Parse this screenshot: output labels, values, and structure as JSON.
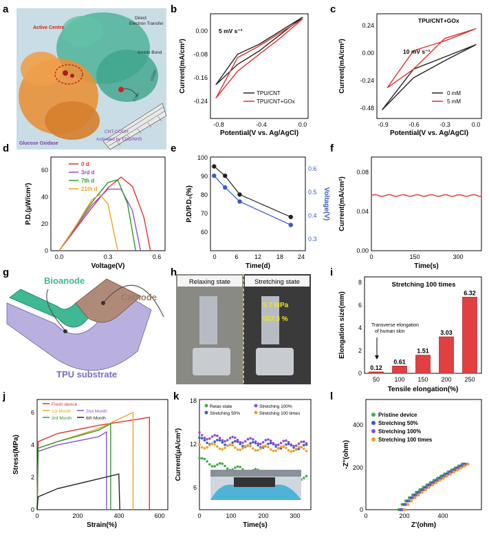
{
  "panels": {
    "a": {
      "letter": "a",
      "labels": {
        "active_centre": "Active Centre",
        "direct_et_1": "Direct",
        "direct_et_2": "Electron Transfer",
        "amido_bond": "Amido Bond",
        "glucose_oxidase": "Glucose Oxidase",
        "cnt_cooh": "CNT-COOH",
        "activated": "Activated by EDC/NHS",
        "cooh": "COOH",
        "c_nh": "C-NH"
      },
      "colors": {
        "bg": "#c9dde6",
        "enzyme_orange": "#e8923a",
        "enzyme_teal": "#4fb39a",
        "text_purple": "#7a3fa0",
        "text_red": "#d62020"
      }
    },
    "b": {
      "letter": "b",
      "annotation": "5 mV s⁻¹",
      "xlabel": "Potential(V vs. Ag/AgCl)",
      "ylabel": "Current(mA/cm²)",
      "xticks": [
        "-0.8",
        "-0.4",
        "0.0"
      ],
      "yticks": [
        "0.00",
        "-0.08",
        "-0.16",
        "-0.24"
      ],
      "legend": [
        "TPU/CNT",
        "TPU/CNT+GOx"
      ]
    },
    "c": {
      "letter": "c",
      "title": "TPU/CNT+GOx",
      "annotation": "10 mV s⁻¹",
      "xlabel": "Potential(V vs. Ag/AgCl)",
      "ylabel": "Current(mA/cm²)",
      "xticks": [
        "-0.9",
        "-0.6",
        "-0.3",
        "0.0"
      ],
      "yticks": [
        "0.24",
        "0.00",
        "-0.24",
        "-0.48"
      ],
      "legend": [
        "0 mM",
        "5 mM"
      ]
    },
    "d": {
      "letter": "d",
      "xlabel": "Voltage(V)",
      "ylabel": "P.D.(μW/cm²)",
      "xticks": [
        "0.0",
        "0.3",
        "0.6"
      ],
      "yticks": [
        "0",
        "20",
        "40",
        "60"
      ],
      "legend": [
        "0 d",
        "3rd d",
        "7th d",
        "21th d"
      ]
    },
    "e": {
      "letter": "e",
      "xlabel": "Time(d)",
      "ylabel": "P.D/P.D₀(%)",
      "ylabel2": "Voltage(V)",
      "xticks": [
        "0",
        "6",
        "12",
        "18",
        "24"
      ],
      "yticks": [
        "60",
        "70",
        "80",
        "90",
        "100"
      ],
      "y2ticks": [
        "0.3",
        "0.4",
        "0.5",
        "0.6"
      ]
    },
    "f": {
      "letter": "f",
      "xlabel": "Time(s)",
      "ylabel": "Current(mA/cm²)",
      "xticks": [
        "0",
        "150",
        "300"
      ],
      "yticks": [
        "0.00",
        "0.04",
        "0.08"
      ]
    },
    "g": {
      "letter": "g",
      "labels": {
        "bioanode": "Bioanode",
        "cathode": "Cathode",
        "substrate": "TPU substrate"
      }
    },
    "h": {
      "letter": "h",
      "labels": {
        "relaxing": "Relaxing state",
        "stretching": "Stretching state",
        "mpa": "5.7 MPa",
        "pct": "557.3 %"
      }
    },
    "i": {
      "letter": "i",
      "title": "Stretching 100 times",
      "annotation_1": "Transverse elongation",
      "annotation_2": "of human skin",
      "xlabel": "Tensile elongation(%)",
      "ylabel": "Elongation size(mm)",
      "yticks": [
        "0",
        "2",
        "4",
        "6",
        "8"
      ]
    },
    "j": {
      "letter": "j",
      "xlabel": "Strain(%)",
      "ylabel": "Stress(MPa)",
      "xticks": [
        "0",
        "200",
        "400",
        "600"
      ],
      "yticks": [
        "0",
        "2",
        "4",
        "6"
      ],
      "legend": [
        "Fresh device",
        "1st Month",
        "2nd Month",
        "3rd Month",
        "6th Month"
      ]
    },
    "k": {
      "letter": "k",
      "xlabel": "Time(s)",
      "ylabel": "Current(μA/cm²)",
      "xticks": [
        "0",
        "100",
        "200",
        "300"
      ],
      "yticks": [
        "6",
        "12",
        "18"
      ],
      "legend": [
        "Relax state",
        "Stretching 100%",
        "Stretching 50%",
        "Stretching 100 times"
      ]
    },
    "l": {
      "letter": "l",
      "xlabel": "Z'(ohm)",
      "ylabel": "-Z''(ohm)",
      "xticks": [
        "0",
        "200",
        "400"
      ],
      "yticks": [
        "0",
        "200",
        "400"
      ],
      "legend": [
        "Pristine device",
        "Stretching 50%",
        "Stretching 100%",
        "Stretching 100 times"
      ]
    }
  },
  "chart_data": [
    {
      "panel": "b",
      "type": "line",
      "xlim": [
        -0.85,
        0.05
      ],
      "ylim": [
        -0.28,
        0.03
      ],
      "series": [
        {
          "name": "TPU/CNT",
          "color": "#222222",
          "x": [
            0.0,
            -0.2,
            -0.4,
            -0.6,
            -0.8,
            -0.6,
            -0.4,
            -0.2,
            0.0
          ],
          "y": [
            0.02,
            -0.02,
            -0.06,
            -0.09,
            -0.18,
            -0.12,
            -0.08,
            -0.03,
            0.02
          ]
        },
        {
          "name": "TPU/CNT+GOx",
          "color": "#e03030",
          "x": [
            0.0,
            -0.2,
            -0.4,
            -0.6,
            -0.8,
            -0.6,
            -0.4,
            -0.2,
            0.0
          ],
          "y": [
            0.015,
            -0.025,
            -0.065,
            -0.1,
            -0.22,
            -0.14,
            -0.09,
            -0.04,
            0.015
          ]
        }
      ]
    },
    {
      "panel": "c",
      "type": "line",
      "xlim": [
        -0.95,
        0.05
      ],
      "ylim": [
        -0.55,
        0.3
      ],
      "series": [
        {
          "name": "0 mM",
          "color": "#222222",
          "x": [
            0.0,
            -0.3,
            -0.6,
            -0.9,
            -0.6,
            -0.3,
            0.0
          ],
          "y": [
            0.05,
            -0.05,
            -0.15,
            -0.48,
            -0.22,
            -0.08,
            0.05
          ]
        },
        {
          "name": "5 mM",
          "color": "#e03030",
          "x": [
            0.0,
            -0.3,
            -0.6,
            -0.85,
            -0.6,
            -0.3,
            0.0
          ],
          "y": [
            0.18,
            0.08,
            0.0,
            -0.3,
            -0.15,
            0.1,
            0.18
          ]
        }
      ]
    },
    {
      "panel": "d",
      "type": "line",
      "xlim": [
        -0.05,
        0.65
      ],
      "ylim": [
        0,
        70
      ],
      "series": [
        {
          "name": "0 d",
          "color": "#e03030",
          "x": [
            0,
            0.1,
            0.2,
            0.3,
            0.38,
            0.45,
            0.52,
            0.56
          ],
          "y": [
            0,
            16,
            32,
            47,
            55,
            48,
            25,
            0
          ]
        },
        {
          "name": "3rd d",
          "color": "#8a4fd0",
          "x": [
            0,
            0.1,
            0.2,
            0.3,
            0.38,
            0.45,
            0.5
          ],
          "y": [
            0,
            17,
            34,
            46,
            46,
            30,
            0
          ]
        },
        {
          "name": "7th d",
          "color": "#2a9a2a",
          "x": [
            0,
            0.1,
            0.2,
            0.3,
            0.36,
            0.42,
            0.47
          ],
          "y": [
            0,
            18,
            36,
            51,
            53,
            35,
            0
          ]
        },
        {
          "name": "21th d",
          "color": "#f2a020",
          "x": [
            0,
            0.1,
            0.2,
            0.25,
            0.3,
            0.36
          ],
          "y": [
            0,
            18,
            38,
            42,
            35,
            0
          ]
        }
      ]
    },
    {
      "panel": "e",
      "type": "line",
      "xlim": [
        -1,
        25
      ],
      "ylim": [
        55,
        105
      ],
      "y2lim": [
        0.25,
        0.65
      ],
      "series": [
        {
          "name": "P.D/P.D0",
          "color": "#222222",
          "x": [
            0,
            3,
            7,
            21
          ],
          "y": [
            100,
            95,
            85,
            73
          ]
        },
        {
          "name": "Voltage",
          "color": "#3a5ac8",
          "axis": "right",
          "x": [
            0,
            3,
            7,
            21
          ],
          "y": [
            0.57,
            0.52,
            0.46,
            0.36
          ]
        }
      ]
    },
    {
      "panel": "f",
      "type": "line",
      "xlim": [
        0,
        380
      ],
      "ylim": [
        0,
        0.095
      ],
      "series": [
        {
          "name": "current",
          "color": "#e03030",
          "x": [
            0,
            380
          ],
          "y": [
            0.056,
            0.056
          ]
        }
      ]
    },
    {
      "panel": "i",
      "type": "bar",
      "categories": [
        "50",
        "100",
        "150",
        "200",
        "250"
      ],
      "values": [
        0.12,
        0.61,
        1.51,
        3.03,
        6.32
      ],
      "ylim": [
        0,
        8
      ]
    },
    {
      "panel": "j",
      "type": "line",
      "xlim": [
        0,
        640
      ],
      "ylim": [
        0,
        6.8
      ],
      "series": [
        {
          "name": "Fresh device",
          "color": "#e03030",
          "x": [
            0,
            5,
            100,
            300,
            550,
            550
          ],
          "y": [
            0,
            4.2,
            4.7,
            5.2,
            5.7,
            0
          ]
        },
        {
          "name": "1st Month",
          "color": "#f2a020",
          "x": [
            0,
            5,
            100,
            300,
            470,
            470
          ],
          "y": [
            0,
            3.8,
            4.2,
            5.0,
            6.0,
            0
          ]
        },
        {
          "name": "2nd Month",
          "color": "#8a4fd0",
          "x": [
            0,
            5,
            100,
            300,
            340,
            340
          ],
          "y": [
            0,
            3.6,
            4.0,
            4.5,
            4.8,
            0
          ]
        },
        {
          "name": "3rd Month",
          "color": "#2a9a2a",
          "x": [
            0,
            5,
            100,
            300,
            360,
            360
          ],
          "y": [
            0,
            3.8,
            4.2,
            4.9,
            5.3,
            0
          ]
        },
        {
          "name": "6th Month",
          "color": "#222222",
          "x": [
            0,
            5,
            100,
            300,
            400,
            405
          ],
          "y": [
            0,
            0.8,
            1.3,
            1.9,
            2.2,
            0
          ]
        }
      ]
    },
    {
      "panel": "k",
      "type": "scatter",
      "xlim": [
        0,
        350
      ],
      "ylim": [
        4,
        19
      ],
      "series": [
        {
          "name": "Relax state",
          "color": "#3cb043",
          "start": 11,
          "end": 8.3
        },
        {
          "name": "Stretching 50%",
          "color": "#3a5ac8",
          "start": 13.5,
          "end": 12.5
        },
        {
          "name": "Stretching 100%",
          "color": "#8a4fd0",
          "start": 14.2,
          "end": 12.9
        },
        {
          "name": "Stretching 100 times",
          "color": "#f2a020",
          "start": 12.8,
          "end": 12.2
        }
      ]
    },
    {
      "panel": "l",
      "type": "scatter",
      "xlim": [
        0,
        600
      ],
      "ylim": [
        0,
        520
      ],
      "series": [
        {
          "name": "Pristine device",
          "color": "#3cb043",
          "x0": 170,
          "x1": 500
        },
        {
          "name": "Stretching 50%",
          "color": "#3a5ac8",
          "x0": 180,
          "x1": 510
        },
        {
          "name": "Stretching 100%",
          "color": "#8a4fd0",
          "x0": 190,
          "x1": 520
        },
        {
          "name": "Stretching 100 times",
          "color": "#f2a020",
          "x0": 200,
          "x1": 530
        }
      ]
    }
  ]
}
